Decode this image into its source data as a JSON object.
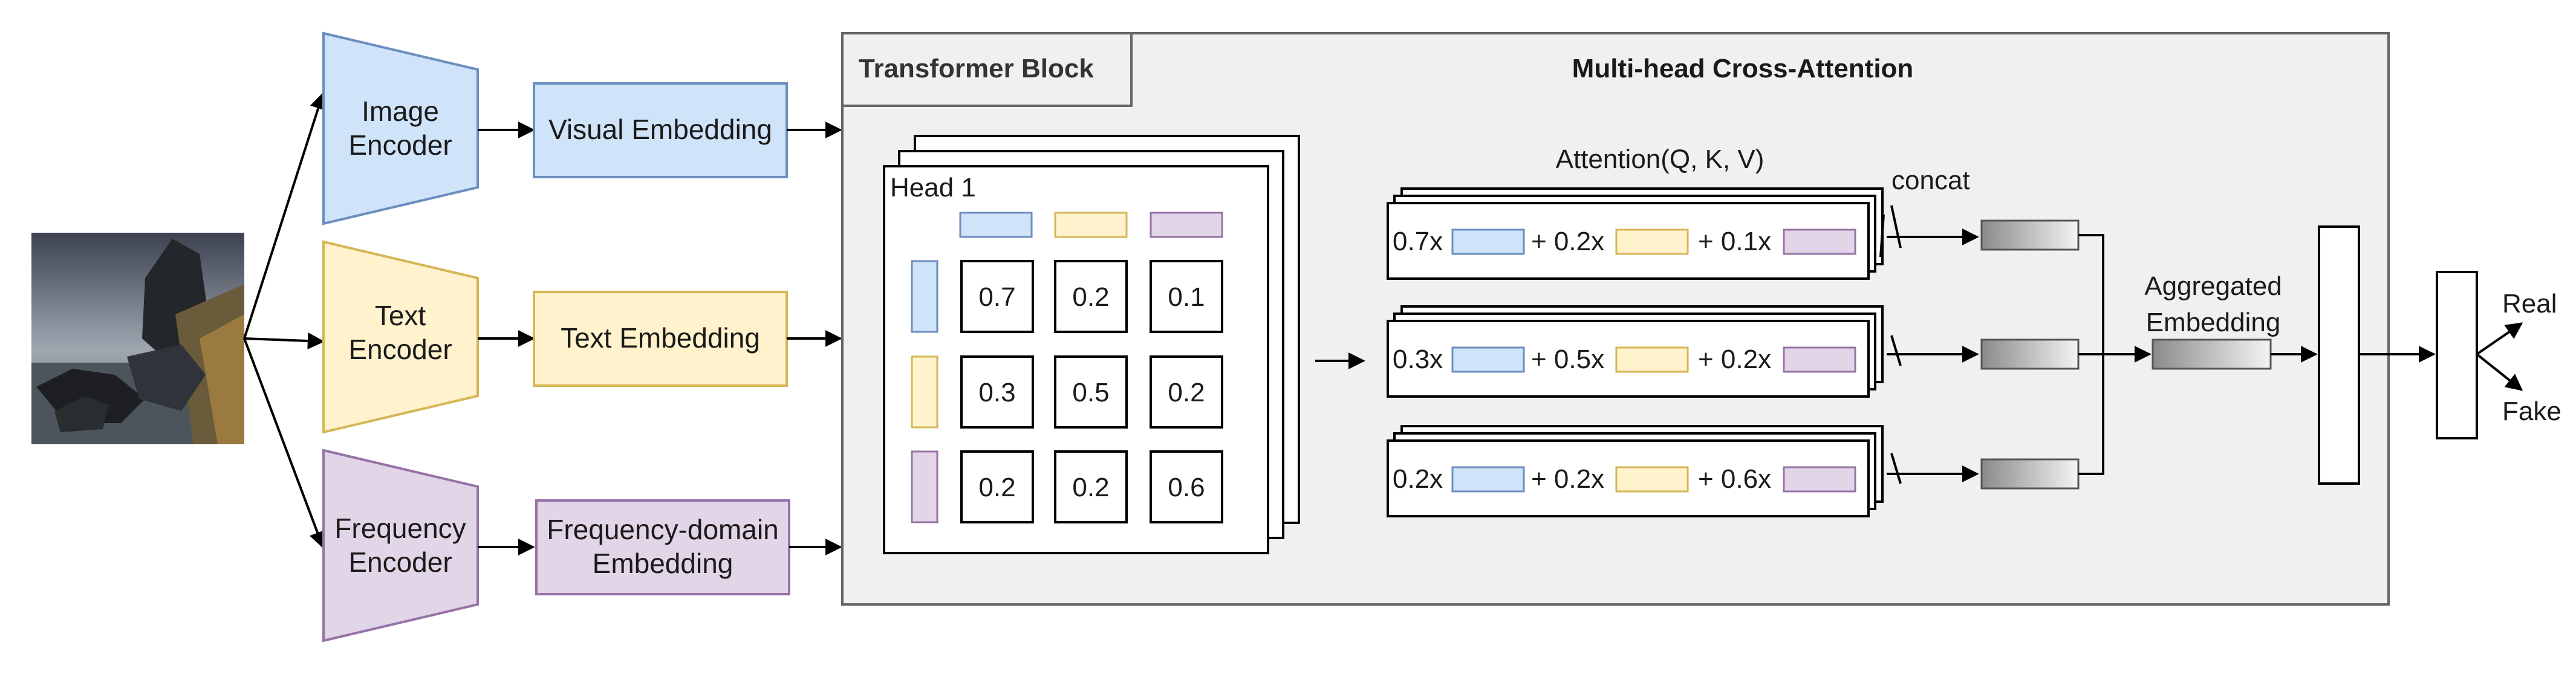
{
  "colors": {
    "blue_fill": "#cfe3f9",
    "blue_stroke": "#6c8ebf",
    "yellow_fill": "#fff2cc",
    "yellow_stroke": "#d6b656",
    "purple_fill": "#e1d5e7",
    "purple_stroke": "#9673a6",
    "block_fill": "#f0f0f0",
    "block_stroke": "#666666"
  },
  "input_image": {
    "description_icon": "landscape-image-icon"
  },
  "encoders": [
    {
      "id": "image",
      "line1": "Image",
      "line2": "Encoder",
      "color": "blue"
    },
    {
      "id": "text",
      "line1": "Text",
      "line2": "Encoder",
      "color": "yellow"
    },
    {
      "id": "frequency",
      "line1": "Frequency",
      "line2": "Encoder",
      "color": "purple"
    }
  ],
  "embeddings": [
    {
      "id": "visual",
      "line1": "Visual Embedding",
      "line2": "",
      "color": "blue"
    },
    {
      "id": "text",
      "line1": "Text Embedding",
      "line2": "",
      "color": "yellow"
    },
    {
      "id": "frequency",
      "line1": "Frequency-domain",
      "line2": "Embedding",
      "color": "purple"
    }
  ],
  "transformer": {
    "title": "Transformer Block",
    "subtitle": "Multi-head Cross-Attention",
    "head_title": "Head 1",
    "matrix": [
      [
        "0.7",
        "0.2",
        "0.1"
      ],
      [
        "0.3",
        "0.5",
        "0.2"
      ],
      [
        "0.2",
        "0.2",
        "0.6"
      ]
    ],
    "attention_title": "Attention(Q, K, V)",
    "concat_label": "concat",
    "attention_rows": [
      [
        "0.7x",
        "+ 0.2x",
        "+ 0.1x"
      ],
      [
        "0.3x",
        "+ 0.5x",
        "+ 0.2x"
      ],
      [
        "0.2x",
        "+ 0.2x",
        "+ 0.6x"
      ]
    ],
    "aggregated_line1": "Aggregated",
    "aggregated_line2": "Embedding"
  },
  "outputs": {
    "real": "Real",
    "fake": "Fake"
  }
}
